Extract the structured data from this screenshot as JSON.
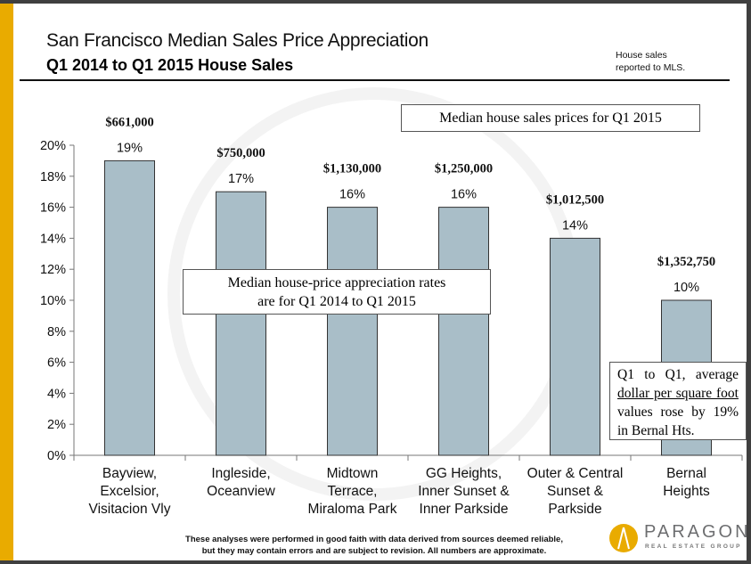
{
  "header": {
    "title": "San Francisco Median Sales Price Appreciation",
    "subtitle": "Q1 2014 to Q1 2015 House Sales",
    "note_line1": "House sales",
    "note_line2": "reported to MLS."
  },
  "annotations": {
    "prices_box": "Median house sales prices for Q1 2015",
    "rates_box_line1": "Median house-price appreciation rates",
    "rates_box_line2": "are for Q1 2014 to Q1 2015",
    "bernal_box_a": "Q1 to Q1, average ",
    "bernal_box_b": "dollar per square foot ",
    "bernal_box_c": "values rose by 19% in Bernal Hts."
  },
  "footer": {
    "line1": "These analyses were performed in good faith with data derived from sources deemed reliable,",
    "line2": "but they may contain errors and are subject to revision. All numbers are approximate."
  },
  "logo": {
    "name": "PARAGON",
    "tagline": "REAL ESTATE GROUP"
  },
  "colors": {
    "bar": "#a9bec8",
    "accent": "#e9ab00",
    "frame": "#3f3f3f"
  },
  "chart_data": {
    "type": "bar",
    "categories": [
      [
        "Bayview,",
        "Excelsior,",
        "Visitacion Vly"
      ],
      [
        "Ingleside,",
        "Oceanview"
      ],
      [
        "Midtown",
        "Terrace,",
        "Miraloma Park"
      ],
      [
        "GG Heights,",
        "Inner Sunset &",
        "Inner Parkside"
      ],
      [
        "Outer & Central",
        "Sunset &",
        "Parkside"
      ],
      [
        "Bernal",
        "Heights"
      ]
    ],
    "values": [
      19,
      17,
      16,
      16,
      14,
      10
    ],
    "value_labels": [
      "19%",
      "17%",
      "16%",
      "16%",
      "14%",
      "10%"
    ],
    "price_labels": [
      "$661,000",
      "$750,000",
      "$1,130,000",
      "$1,250,000",
      "$1,012,500",
      "$1,352,750"
    ],
    "yticks": [
      "0%",
      "2%",
      "4%",
      "6%",
      "8%",
      "10%",
      "12%",
      "14%",
      "16%",
      "18%",
      "20%"
    ],
    "ylim": [
      0,
      20
    ],
    "grid": false
  }
}
